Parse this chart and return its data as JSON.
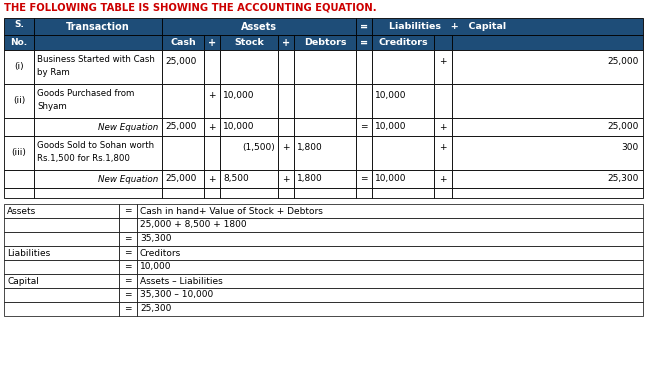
{
  "title": "THE FOLLOWING TABLE IS SHOWING THE ACCOUNTING EQUATION.",
  "title_color": "#cc0000",
  "header_bg": "#1e4d78",
  "header_text_color": "#ffffff",
  "cell_bg": "#ffffff",
  "border_color": "#000000",
  "bottom_table": {
    "rows": [
      [
        "Assets",
        "=",
        "Cash in hand+ Value of Stock + Debtors"
      ],
      [
        "",
        "",
        "25,000 + 8,500 + 1800"
      ],
      [
        "",
        "=",
        "35,300"
      ],
      [
        "Liabilities",
        "=",
        "Creditors"
      ],
      [
        "",
        "=",
        "10,000"
      ],
      [
        "Capital",
        "=",
        "Assets – Liabilities"
      ],
      [
        "",
        "=",
        "35,300 – 10,000"
      ],
      [
        "",
        "=",
        "25,300"
      ]
    ]
  }
}
